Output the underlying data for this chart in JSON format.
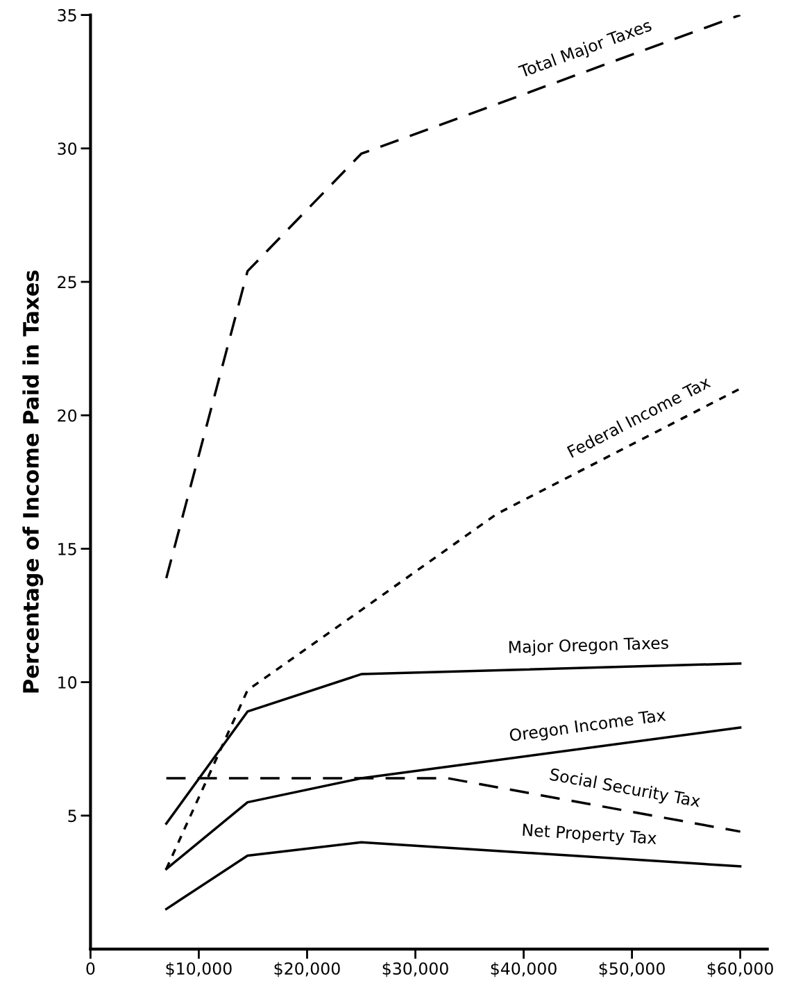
{
  "chart_data": {
    "type": "line",
    "ylabel": "Percentage of Income Paid in Taxes",
    "xlim": [
      0,
      62500
    ],
    "ylim": [
      0,
      35
    ],
    "xticks": [
      {
        "value": 0,
        "label": "0"
      },
      {
        "value": 10000,
        "label": "$10,000"
      },
      {
        "value": 20000,
        "label": "$20,000"
      },
      {
        "value": 30000,
        "label": "$30,000"
      },
      {
        "value": 40000,
        "label": "$40,000"
      },
      {
        "value": 50000,
        "label": "$50,000"
      },
      {
        "value": 60000,
        "label": "$60,000"
      }
    ],
    "yticks": [
      5,
      10,
      15,
      20,
      25,
      30,
      35
    ],
    "grid": false,
    "legend": false,
    "marker": "none",
    "series": [
      {
        "name": "Total Major Taxes",
        "color": "#000000",
        "line_style": "dashed",
        "x": [
          7000,
          14500,
          25000,
          60000
        ],
        "values": [
          13.9,
          25.4,
          29.8,
          35.0
        ]
      },
      {
        "name": "Federal Income Tax",
        "color": "#000000",
        "line_style": "dotted",
        "x": [
          7000,
          14500,
          25000,
          37500,
          60000
        ],
        "values": [
          3.0,
          9.7,
          12.7,
          16.3,
          21.0
        ]
      },
      {
        "name": "Major Oregon Taxes",
        "color": "#000000",
        "line_style": "solid",
        "x": [
          7000,
          14500,
          25000,
          60000
        ],
        "values": [
          4.7,
          8.9,
          10.3,
          10.7
        ]
      },
      {
        "name": "Oregon Income Tax",
        "color": "#000000",
        "line_style": "solid",
        "x": [
          7000,
          14500,
          25000,
          60000
        ],
        "values": [
          3.0,
          5.5,
          6.4,
          8.3
        ]
      },
      {
        "name": "Social Security Tax",
        "color": "#000000",
        "line_style": "dashed",
        "x": [
          7000,
          33000,
          60000
        ],
        "values": [
          6.4,
          6.4,
          4.4
        ]
      },
      {
        "name": "Net Property Tax",
        "color": "#000000",
        "line_style": "solid",
        "x": [
          7000,
          14500,
          25000,
          60000
        ],
        "values": [
          1.5,
          3.5,
          4.0,
          3.1
        ]
      }
    ]
  }
}
